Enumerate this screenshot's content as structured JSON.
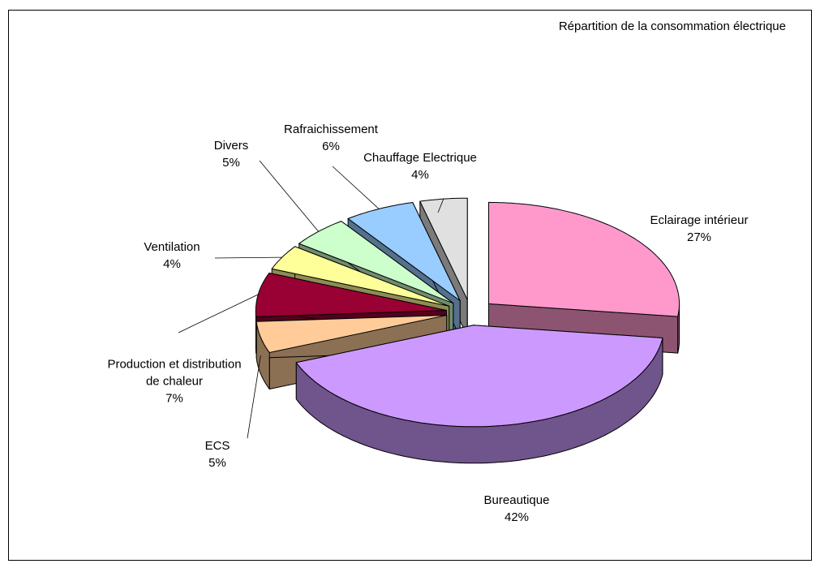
{
  "chart_data": {
    "type": "pie3d",
    "title": "Répartition de la consommation électrique",
    "categories": [
      "Eclairage intérieur",
      "Bureautique",
      "ECS",
      "Production et distribution de chaleur",
      "Ventilation",
      "Divers",
      "Rafraichissement",
      "Chauffage Electrique"
    ],
    "values": [
      27,
      42,
      5,
      7,
      4,
      5,
      6,
      4
    ],
    "value_labels": [
      "27%",
      "42%",
      "5%",
      "7%",
      "4%",
      "5%",
      "6%",
      "4%"
    ],
    "colors": [
      "#ff99cc",
      "#cc99ff",
      "#ffcc99",
      "#990033",
      "#ffff99",
      "#ccffcc",
      "#99ccff",
      "#e0e0e0"
    ]
  }
}
